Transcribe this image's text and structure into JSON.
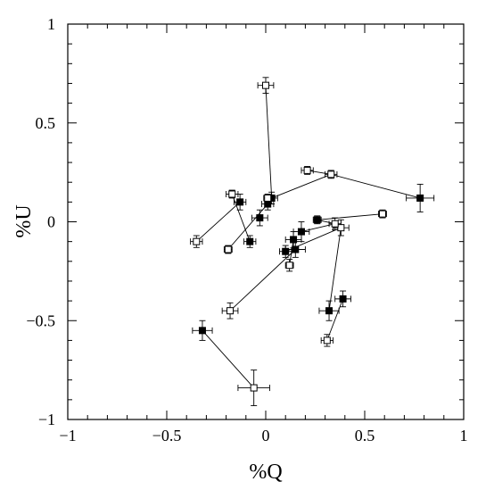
{
  "chart_data": {
    "type": "scatter",
    "title": "",
    "xlabel": "%Q",
    "ylabel": "%U",
    "xlim": [
      -1,
      1
    ],
    "ylim": [
      -1,
      1
    ],
    "x_ticks": [
      -1,
      -0.5,
      0,
      0.5,
      1
    ],
    "y_ticks": [
      -1,
      -0.5,
      0,
      0.5,
      1
    ],
    "x_tick_labels": [
      "−1",
      "−0.5",
      "0",
      "0.5",
      "1"
    ],
    "y_tick_labels": [
      "−1",
      "−0.5",
      "0",
      "0.5",
      "1"
    ],
    "grid": false,
    "legend": "none",
    "colors": {
      "line": "#000000",
      "filled_marker": "#000000",
      "open_marker": "#ffffff"
    },
    "series": [
      {
        "marker": "filled-square",
        "points": [
          {
            "x": 0.03,
            "y": 0.12,
            "xerr": 0.03,
            "yerr": 0.03
          },
          {
            "x": 0.01,
            "y": 0.09,
            "xerr": 0.03,
            "yerr": 0.03
          },
          {
            "x": -0.13,
            "y": 0.1,
            "xerr": 0.03,
            "yerr": 0.04
          },
          {
            "x": -0.03,
            "y": 0.02,
            "xerr": 0.04,
            "yerr": 0.04
          },
          {
            "x": -0.08,
            "y": -0.1,
            "xerr": 0.03,
            "yerr": 0.03
          },
          {
            "x": 0.26,
            "y": 0.01,
            "xerr": 0.02,
            "yerr": 0.02
          },
          {
            "x": 0.18,
            "y": -0.05,
            "xerr": 0.04,
            "yerr": 0.05
          },
          {
            "x": 0.14,
            "y": -0.09,
            "xerr": 0.04,
            "yerr": 0.04
          },
          {
            "x": 0.15,
            "y": -0.14,
            "xerr": 0.05,
            "yerr": 0.04
          },
          {
            "x": 0.1,
            "y": -0.15,
            "xerr": 0.03,
            "yerr": 0.03
          },
          {
            "x": 0.78,
            "y": 0.12,
            "xerr": 0.07,
            "yerr": 0.07
          },
          {
            "x": 0.32,
            "y": -0.45,
            "xerr": 0.05,
            "yerr": 0.05
          },
          {
            "x": 0.39,
            "y": -0.39,
            "xerr": 0.04,
            "yerr": 0.04
          },
          {
            "x": -0.32,
            "y": -0.55,
            "xerr": 0.05,
            "yerr": 0.05
          }
        ]
      },
      {
        "marker": "open-square",
        "points": [
          {
            "x": 0.0,
            "y": 0.69,
            "xerr": 0.04,
            "yerr": 0.04
          },
          {
            "x": 0.01,
            "y": 0.12,
            "xerr": 0.02,
            "yerr": 0.02
          },
          {
            "x": -0.17,
            "y": 0.14,
            "xerr": 0.03,
            "yerr": 0.02
          },
          {
            "x": -0.19,
            "y": -0.14,
            "xerr": 0.02,
            "yerr": 0.02
          },
          {
            "x": -0.35,
            "y": -0.1,
            "xerr": 0.03,
            "yerr": 0.03
          },
          {
            "x": 0.21,
            "y": 0.26,
            "xerr": 0.03,
            "yerr": 0.02
          },
          {
            "x": 0.33,
            "y": 0.24,
            "xerr": 0.03,
            "yerr": 0.02
          },
          {
            "x": 0.59,
            "y": 0.04,
            "xerr": 0.02,
            "yerr": 0.02
          },
          {
            "x": 0.38,
            "y": -0.03,
            "xerr": 0.04,
            "yerr": 0.04
          },
          {
            "x": 0.35,
            "y": -0.01,
            "xerr": 0.03,
            "yerr": 0.03
          },
          {
            "x": 0.12,
            "y": -0.22,
            "xerr": 0.02,
            "yerr": 0.03
          },
          {
            "x": -0.18,
            "y": -0.45,
            "xerr": 0.04,
            "yerr": 0.04
          },
          {
            "x": 0.31,
            "y": -0.6,
            "xerr": 0.03,
            "yerr": 0.03
          },
          {
            "x": -0.06,
            "y": -0.84,
            "xerr": 0.08,
            "yerr": 0.09
          }
        ]
      }
    ],
    "connections": [
      {
        "from": {
          "x": 0.0,
          "y": 0.69
        },
        "to": {
          "x": 0.03,
          "y": 0.12
        }
      },
      {
        "from": {
          "x": 0.33,
          "y": 0.24
        },
        "to": {
          "x": 0.78,
          "y": 0.12
        }
      },
      {
        "from": {
          "x": 0.21,
          "y": 0.26
        },
        "to": {
          "x": 0.33,
          "y": 0.24
        }
      },
      {
        "from": {
          "x": 0.33,
          "y": 0.24
        },
        "to": {
          "x": 0.03,
          "y": 0.12
        }
      },
      {
        "from": {
          "x": -0.17,
          "y": 0.14
        },
        "to": {
          "x": -0.08,
          "y": -0.1
        }
      },
      {
        "from": {
          "x": -0.19,
          "y": -0.14
        },
        "to": {
          "x": 0.01,
          "y": 0.09
        }
      },
      {
        "from": {
          "x": -0.35,
          "y": -0.1
        },
        "to": {
          "x": -0.13,
          "y": 0.1
        }
      },
      {
        "from": {
          "x": 0.59,
          "y": 0.04
        },
        "to": {
          "x": 0.26,
          "y": 0.01
        }
      },
      {
        "from": {
          "x": 0.26,
          "y": 0.01
        },
        "to": {
          "x": 0.35,
          "y": -0.01
        }
      },
      {
        "from": {
          "x": 0.38,
          "y": -0.03
        },
        "to": {
          "x": 0.1,
          "y": -0.15
        }
      },
      {
        "from": {
          "x": 0.35,
          "y": -0.01
        },
        "to": {
          "x": 0.18,
          "y": -0.05
        }
      },
      {
        "from": {
          "x": 0.38,
          "y": -0.03
        },
        "to": {
          "x": 0.32,
          "y": -0.45
        }
      },
      {
        "from": {
          "x": 0.12,
          "y": -0.22
        },
        "to": {
          "x": 0.14,
          "y": -0.09
        }
      },
      {
        "from": {
          "x": -0.18,
          "y": -0.45
        },
        "to": {
          "x": 0.15,
          "y": -0.14
        }
      },
      {
        "from": {
          "x": 0.31,
          "y": -0.6
        },
        "to": {
          "x": 0.39,
          "y": -0.39
        }
      },
      {
        "from": {
          "x": -0.06,
          "y": -0.84
        },
        "to": {
          "x": -0.32,
          "y": -0.55
        }
      }
    ]
  }
}
